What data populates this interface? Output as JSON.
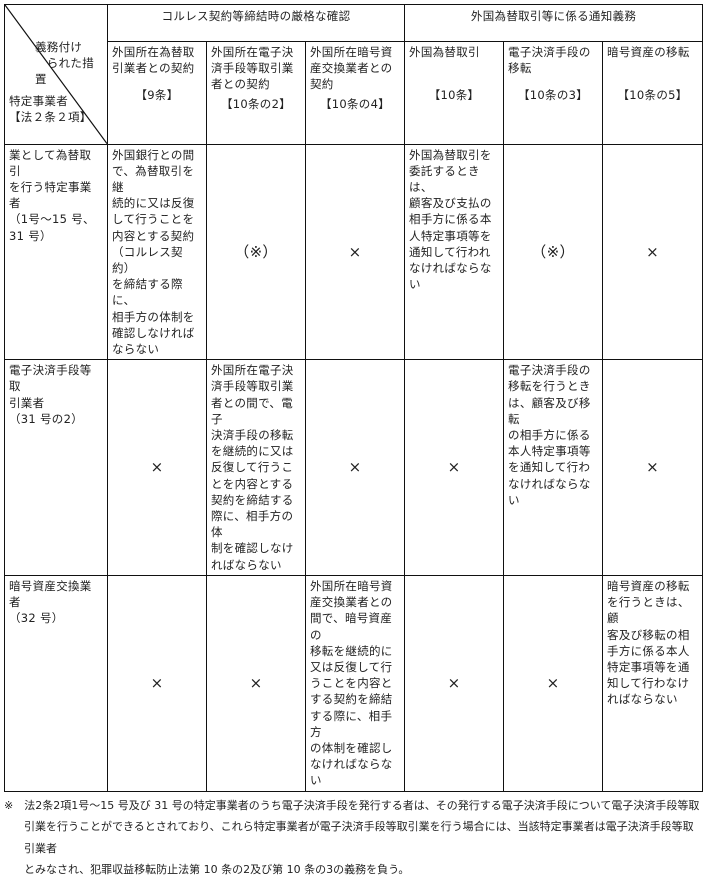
{
  "corner": {
    "top": "義務付け\n　られた措置",
    "bottom": "特定事業者\n【法２条２項】"
  },
  "groups": [
    "コルレス契約等締結時の厳格な確認",
    "外国為替取引等に係る通知義務"
  ],
  "columns": [
    {
      "label": "外国所在為替取\n引業者との契約",
      "article": "【9条】"
    },
    {
      "label": "外国所在電子決\n済手段等取引業\n者との契約",
      "article": "【10条の2】"
    },
    {
      "label": "外国所在暗号資\n産交換業者との\n契約",
      "article": "【10条の4】"
    },
    {
      "label": "外国為替取引",
      "article": "【10条】"
    },
    {
      "label": "電子決済手段の\n移転",
      "article": "【10条の3】"
    },
    {
      "label": "暗号資産の移転",
      "article": "【10条の5】"
    }
  ],
  "rows": [
    {
      "entity": "業として為替取引\nを行う特定事業者\n（1号～15 号、\n31 号）",
      "cells": [
        "外国銀行との間\nで、為替取引を継\n続的に又は反復\nして行うことを\n内容とする契約\n（コルレス契約）\nを締結する際に、\n相手方の体制を\n確認しなければ\nならない",
        "（※）",
        "×",
        "外国為替取引を\n委託するときは、\n顧客及び支払の\n相手方に係る本\n人特定事項等を\n通知して行われ\nなければならな\nい",
        "（※）",
        "×"
      ]
    },
    {
      "entity": "電子決済手段等取\n引業者\n（31 号の2）",
      "cells": [
        "×",
        "外国所在電子決\n済手段等取引業\n者との間で、電子\n決済手段の移転\nを継続的に又は\n反復して行うこ\nとを内容とする\n契約を締結する\n際に、相手方の体\n制を確認しなけ\nればならない",
        "×",
        "×",
        "電子決済手段の\n移転を行うとき\nは、顧客及び移転\nの相手方に係る\n本人特定事項等\nを通知して行わ\nなければならな\nい",
        "×"
      ]
    },
    {
      "entity": "暗号資産交換業者\n（32 号）",
      "cells": [
        "×",
        "×",
        "外国所在暗号資\n産交換業者との\n間で、暗号資産の\n移転を継続的に\n又は反復して行\nうことを内容と\nする契約を締結\nする際に、相手方\nの体制を確認し\nなければならな\nい",
        "×",
        "×",
        "暗号資産の移転\nを行うときは、顧\n客及び移転の相\n手方に係る本人\n特定事項等を通\n知して行わなけ\nればならない"
      ]
    }
  ],
  "footnote": [
    "※　法2条2項1号～15 号及び 31 号の特定事業者のうち電子決済手段を発行する者は、その発行する電子決済手段について電子決済手段等取",
    "引業を行うことができるとされており、これら特定事業者が電子決済手段等取引業を行う場合には、当該特定事業者は電子決済手段等取引業者",
    "とみなされ、犯罪収益移転防止法第 10 条の2及び第 10 条の3の義務を負う。"
  ]
}
